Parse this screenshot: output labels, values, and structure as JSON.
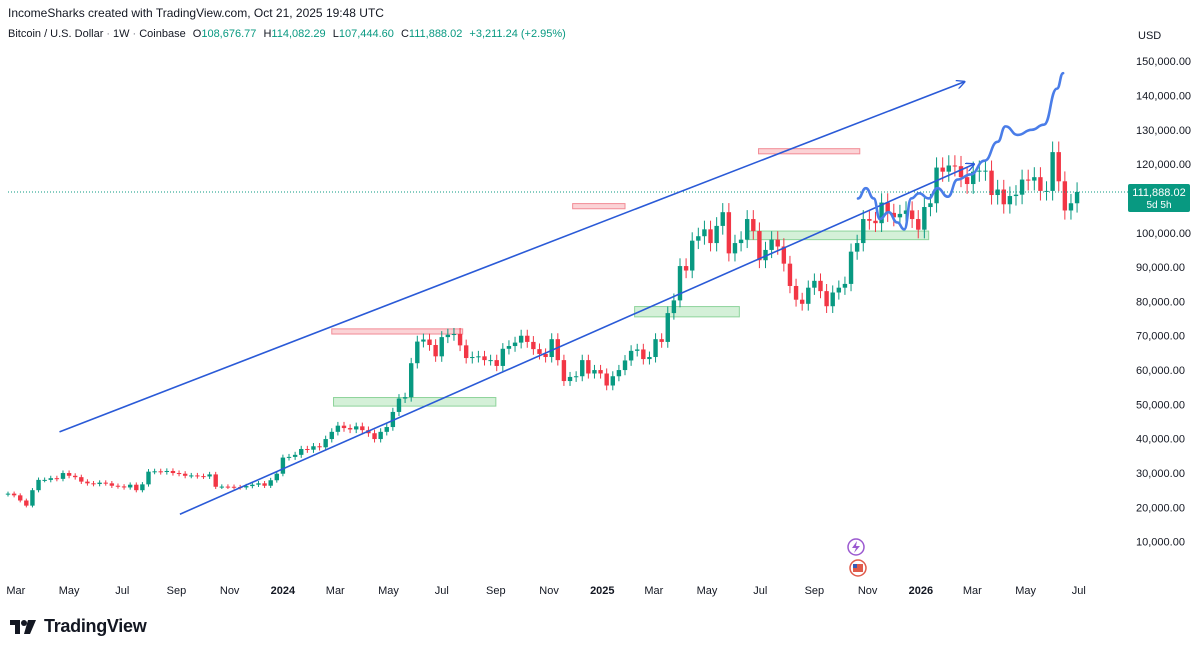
{
  "header": {
    "attribution": "IncomeSharks created with TradingView.com, Oct 21, 2025 19:48 UTC"
  },
  "legend": {
    "symbol": "Bitcoin / U.S. Dollar",
    "interval": "1W",
    "exchange": "Coinbase",
    "open_label": "O",
    "open_value": "108,676.77",
    "high_label": "H",
    "high_value": "114,082.29",
    "low_label": "L",
    "low_value": "107,444.60",
    "close_label": "C",
    "close_value": "111,888.02",
    "change": "+3,211.24 (+2.95%)"
  },
  "price_scale": {
    "currency": "USD",
    "current_price": "111,888.02",
    "countdown": "5d 5h"
  },
  "footer": {
    "brand": "TradingView"
  },
  "colors": {
    "up": "#089981",
    "down": "#f23645",
    "channel": "#2a5ad7",
    "projection": "#4a7de8",
    "resistance_fill": "#fbd3d6",
    "support_fill": "#d4f0d8",
    "current_tag": "#089981"
  },
  "chart_data": {
    "type": "candlestick",
    "symbol": "Bitcoin / U.S. Dollar",
    "interval": "1W",
    "y_unit": "USD",
    "ylim": [
      0,
      155000
    ],
    "y_ticks": [
      10000,
      20000,
      30000,
      40000,
      50000,
      60000,
      70000,
      80000,
      90000,
      100000,
      110000,
      120000,
      130000,
      140000,
      150000
    ],
    "y_tick_labels": [
      "10,000.00",
      "20,000.00",
      "30,000.00",
      "40,000.00",
      "50,000.00",
      "60,000.00",
      "70,000.00",
      "80,000.00",
      "90,000.00",
      "100,000.00",
      "110,000.00",
      "120,000.00",
      "130,000.00",
      "140,000.00",
      "150,000.00"
    ],
    "x_range": [
      "2023-02-20",
      "2026-07-31"
    ],
    "x_ticks": [
      {
        "date": "2023-03-01",
        "label": "Mar"
      },
      {
        "date": "2023-05-01",
        "label": "May"
      },
      {
        "date": "2023-07-01",
        "label": "Jul"
      },
      {
        "date": "2023-09-01",
        "label": "Sep"
      },
      {
        "date": "2023-11-01",
        "label": "Nov"
      },
      {
        "date": "2024-01-01",
        "label": "2024",
        "bold": true
      },
      {
        "date": "2024-03-01",
        "label": "Mar"
      },
      {
        "date": "2024-05-01",
        "label": "May"
      },
      {
        "date": "2024-07-01",
        "label": "Jul"
      },
      {
        "date": "2024-09-01",
        "label": "Sep"
      },
      {
        "date": "2024-11-01",
        "label": "Nov"
      },
      {
        "date": "2025-01-01",
        "label": "2025",
        "bold": true
      },
      {
        "date": "2025-03-01",
        "label": "Mar"
      },
      {
        "date": "2025-05-01",
        "label": "May"
      },
      {
        "date": "2025-07-01",
        "label": "Jul"
      },
      {
        "date": "2025-09-01",
        "label": "Sep"
      },
      {
        "date": "2025-11-01",
        "label": "Nov"
      },
      {
        "date": "2026-01-01",
        "label": "2026",
        "bold": true
      },
      {
        "date": "2026-03-01",
        "label": "Mar"
      },
      {
        "date": "2026-05-01",
        "label": "May"
      },
      {
        "date": "2026-07-01",
        "label": "Jul"
      }
    ],
    "series": [
      {
        "weeks_anchor": "2023-02-20",
        "closes": [
          24000,
          23500,
          22000,
          20500,
          25000,
          28000,
          28000,
          28500,
          28300,
          30000,
          29200,
          28800,
          27500,
          27000,
          26800,
          27200,
          27000,
          26300,
          26100,
          25800,
          26600,
          25000,
          26700,
          30400,
          30500,
          30300,
          30600,
          30000,
          29800,
          29200,
          29300,
          29100,
          29000,
          29600,
          26000,
          26050,
          26000,
          25900,
          25800,
          26200,
          26600,
          27000,
          26300,
          27900,
          29800,
          34500,
          34700,
          35300,
          37000,
          36800,
          37800,
          37500,
          39900,
          42000,
          43800,
          43100,
          42700,
          43600,
          42500,
          41600,
          39900,
          42000,
          43400,
          47800,
          51700,
          52100,
          62000,
          68300,
          68900,
          67300,
          64000,
          69600,
          70300,
          70500,
          67200,
          63500,
          63800,
          64000,
          62900,
          62900,
          61200,
          66200,
          67000,
          68000,
          70000,
          68200,
          66100,
          64700,
          63800,
          69000,
          62900,
          56800,
          58000,
          58200,
          62900,
          59000,
          60000,
          59000,
          55500,
          58200,
          60000,
          62800,
          65600,
          66000,
          63200,
          63800,
          69000,
          68200,
          76600,
          80300,
          90300,
          89000,
          97700,
          99000,
          101000,
          97000,
          102000,
          106000,
          94000,
          97000,
          98000,
          104000,
          100500,
          92000,
          95000,
          98000,
          96000,
          91000,
          84500,
          80500,
          79300,
          84000,
          86000,
          83000,
          78600,
          82600,
          84000,
          85100,
          94500,
          97000,
          104000,
          103500,
          102800,
          108800,
          105800,
          104500,
          105500,
          106500,
          104000,
          100900,
          107500,
          108600,
          119000,
          117800,
          119600,
          119400,
          116200,
          114200,
          117800,
          118100,
          118100,
          111000,
          112600,
          108300,
          110700,
          111100,
          115500,
          115200,
          116200,
          112200,
          112200,
          123500,
          115000,
          106500,
          108600,
          111900
        ]
      }
    ],
    "resistance_zones": [
      {
        "from": "2024-02-26",
        "to": "2024-07-25",
        "low": 70500,
        "high": 72000
      },
      {
        "from": "2024-11-28",
        "to": "2025-01-27",
        "low": 107000,
        "high": 108500
      },
      {
        "from": "2025-06-29",
        "to": "2025-10-23",
        "low": 123000,
        "high": 124500
      }
    ],
    "support_zones": [
      {
        "from": "2024-02-28",
        "to": "2024-09-01",
        "low": 49500,
        "high": 52000
      },
      {
        "from": "2025-02-07",
        "to": "2025-06-07",
        "low": 75500,
        "high": 78500
      },
      {
        "from": "2025-06-15",
        "to": "2026-01-10",
        "low": 98000,
        "high": 100500
      }
    ],
    "channel_lines": [
      {
        "name": "upper",
        "from": {
          "date": "2023-04-20",
          "price": 42000
        },
        "to": {
          "date": "2026-02-20",
          "price": 144000
        }
      },
      {
        "name": "lower",
        "from": {
          "date": "2023-09-05",
          "price": 18000
        },
        "to": {
          "date": "2026-03-03",
          "price": 120000
        }
      }
    ],
    "projection_path": [
      {
        "date": "2025-10-21",
        "price": 110000
      },
      {
        "date": "2025-10-30",
        "price": 113000
      },
      {
        "date": "2025-11-08",
        "price": 110000
      },
      {
        "date": "2025-11-15",
        "price": 104000
      },
      {
        "date": "2025-11-25",
        "price": 106000
      },
      {
        "date": "2025-12-05",
        "price": 103000
      },
      {
        "date": "2025-12-13",
        "price": 101000
      },
      {
        "date": "2025-12-21",
        "price": 110000
      },
      {
        "date": "2025-12-30",
        "price": 111500
      },
      {
        "date": "2026-01-10",
        "price": 110000
      },
      {
        "date": "2026-01-20",
        "price": 113000
      },
      {
        "date": "2026-02-01",
        "price": 110500
      },
      {
        "date": "2026-02-12",
        "price": 115500
      },
      {
        "date": "2026-02-27",
        "price": 117000
      },
      {
        "date": "2026-03-15",
        "price": 121000
      },
      {
        "date": "2026-03-30",
        "price": 126500
      },
      {
        "date": "2026-04-08",
        "price": 131000
      },
      {
        "date": "2026-04-22",
        "price": 128500
      },
      {
        "date": "2026-05-08",
        "price": 130000
      },
      {
        "date": "2026-05-22",
        "price": 131500
      },
      {
        "date": "2026-06-06",
        "price": 142000
      },
      {
        "date": "2026-06-13",
        "price": 146500
      }
    ],
    "current_price_line": 111888.02
  }
}
